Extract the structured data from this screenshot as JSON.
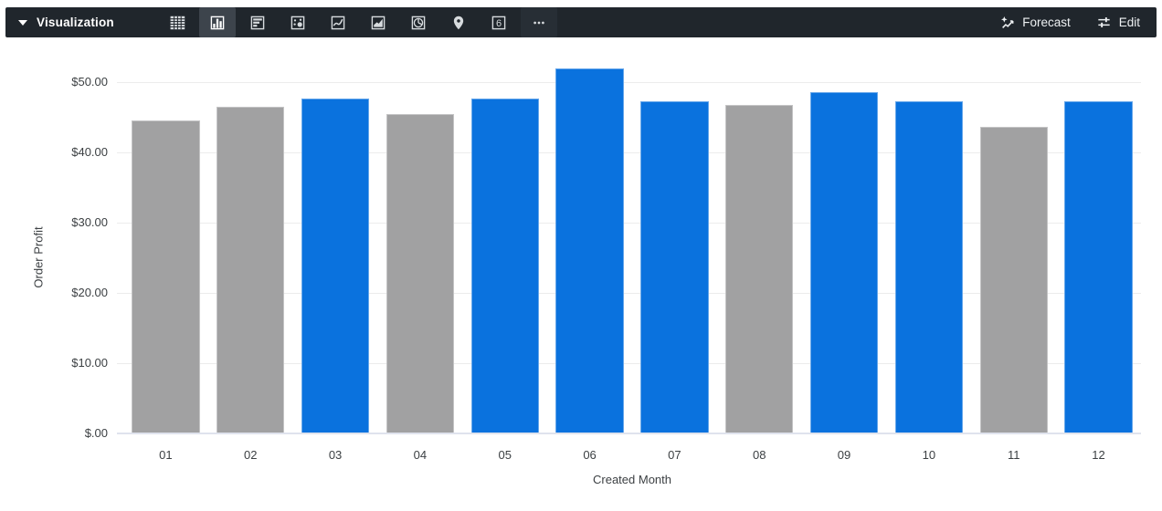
{
  "toolbar": {
    "title": "Visualization",
    "forecast_label": "Forecast",
    "edit_label": "Edit",
    "chart_types": [
      {
        "name": "table",
        "selected": false
      },
      {
        "name": "column",
        "selected": true
      },
      {
        "name": "bar",
        "selected": false
      },
      {
        "name": "scatter",
        "selected": false
      },
      {
        "name": "line",
        "selected": false
      },
      {
        "name": "area",
        "selected": false
      },
      {
        "name": "pie",
        "selected": false
      },
      {
        "name": "map",
        "selected": false
      },
      {
        "name": "single-value",
        "selected": false,
        "glyph": "6"
      },
      {
        "name": "more",
        "selected": false
      }
    ]
  },
  "chart_data": {
    "type": "bar",
    "xlabel": "Created Month",
    "ylabel": "Order Profit",
    "categories": [
      "01",
      "02",
      "03",
      "04",
      "05",
      "06",
      "07",
      "08",
      "09",
      "10",
      "11",
      "12"
    ],
    "values": [
      44.5,
      46.5,
      47.6,
      45.5,
      47.6,
      52.0,
      47.3,
      46.7,
      48.6,
      47.3,
      43.7,
      47.3
    ],
    "bar_colors": [
      "gray",
      "gray",
      "blue",
      "gray",
      "blue",
      "blue",
      "blue",
      "gray",
      "blue",
      "blue",
      "gray",
      "blue"
    ],
    "palette": {
      "blue": "#0a72de",
      "gray": "#a1a1a2"
    },
    "y_ticks": [
      {
        "label": "$50.00",
        "value": 50
      },
      {
        "label": "$40.00",
        "value": 40
      },
      {
        "label": "$30.00",
        "value": 30
      },
      {
        "label": "$20.00",
        "value": 20
      },
      {
        "label": "$10.00",
        "value": 10
      },
      {
        "label": "$.00",
        "value": 0
      }
    ],
    "ylim": [
      0,
      52.5
    ],
    "grid": true,
    "legend": "none"
  }
}
